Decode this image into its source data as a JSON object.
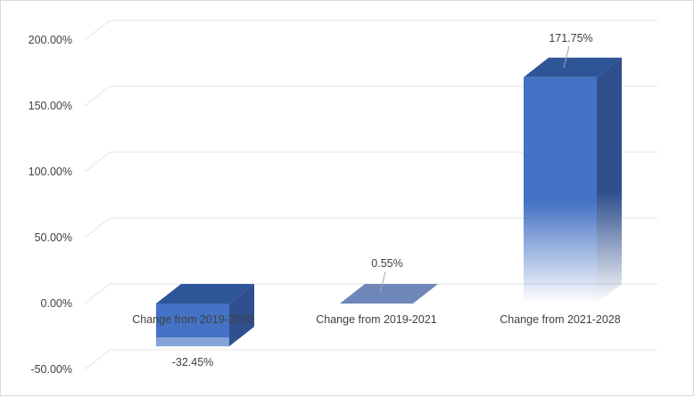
{
  "chart_data": {
    "type": "bar",
    "categories": [
      "Change from 2019-2020",
      "Change from 2019-2021",
      "Change from 2021-2028"
    ],
    "values": [
      -32.45,
      0.55,
      171.75
    ],
    "value_labels": [
      "-32.45%",
      "0.55%",
      "171.75%"
    ],
    "ylim": [
      -50,
      200
    ],
    "yticks": [
      -50,
      0,
      50,
      100,
      150,
      200
    ],
    "ytick_labels": [
      "-50.00%",
      "0.00%",
      "50.00%",
      "100.00%",
      "150.00%",
      "200.00%"
    ],
    "title": "",
    "xlabel": "",
    "ylabel": "",
    "grid": true,
    "style": "3d-column",
    "colors": {
      "front": "#4472c4",
      "side": "#2f4f8f",
      "top": "#2e5597",
      "flat_top": "#6f86b8",
      "grid": "#e3e3e3",
      "text": "#404040"
    }
  }
}
